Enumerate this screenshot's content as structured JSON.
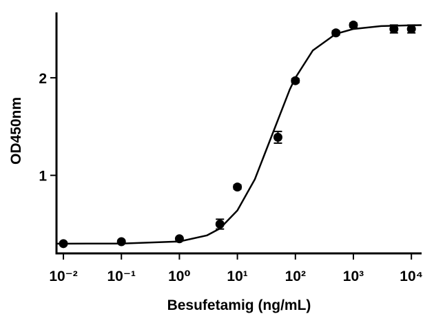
{
  "chart_data": {
    "type": "scatter",
    "x_label": "Besufetamig (ng/mL)",
    "y_label": "OD450nm",
    "xscale": "log",
    "xlim": [
      0.0076,
      15000
    ],
    "ylim": [
      0.2,
      2.67
    ],
    "xticks": [
      {
        "value": 0.01,
        "label": "10⁻²"
      },
      {
        "value": 0.1,
        "label": "10⁻¹"
      },
      {
        "value": 1,
        "label": "10⁰"
      },
      {
        "value": 10,
        "label": "10¹"
      },
      {
        "value": 100,
        "label": "10²"
      },
      {
        "value": 1000,
        "label": "10³"
      },
      {
        "value": 10000,
        "label": "10⁴"
      }
    ],
    "yticks": [
      1,
      2
    ],
    "grid": false,
    "series": [
      {
        "style": "points",
        "color": "#000000",
        "x": [
          0.01,
          0.1,
          1,
          5,
          10,
          50,
          100,
          500,
          1000,
          5000,
          10000
        ],
        "values": [
          0.3,
          0.32,
          0.35,
          0.5,
          0.88,
          1.39,
          1.97,
          2.46,
          2.54,
          2.5,
          2.5
        ],
        "errors": [
          0.01,
          0.01,
          0.01,
          0.05,
          0.02,
          0.06,
          0.02,
          0.02,
          0.02,
          0.04,
          0.04
        ]
      },
      {
        "style": "line",
        "color": "#000000",
        "x": [
          0.0076,
          0.01,
          0.1,
          1,
          3,
          5,
          10,
          20,
          40,
          80,
          100,
          200,
          500,
          1000,
          3000,
          10000,
          15000
        ],
        "values": [
          0.3,
          0.3,
          0.301,
          0.322,
          0.385,
          0.455,
          0.64,
          0.96,
          1.42,
          1.88,
          2.0,
          2.28,
          2.45,
          2.5,
          2.53,
          2.538,
          2.539
        ]
      }
    ]
  }
}
